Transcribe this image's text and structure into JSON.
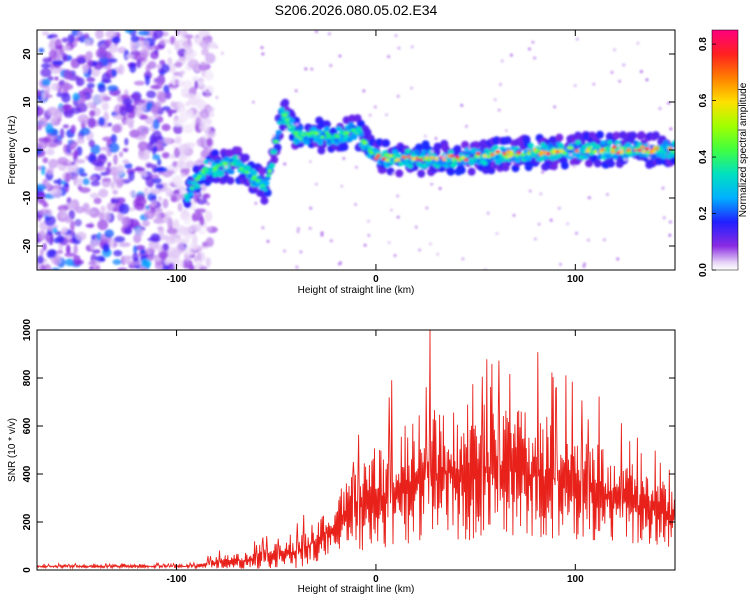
{
  "figure": {
    "title": "S206.2026.080.05.02.E34"
  },
  "chart_data": [
    {
      "type": "heatmap",
      "title": "S206.2026.080.05.02.E34",
      "xlabel": "Height of straight line (km)",
      "ylabel": "Frequency (Hz)",
      "xlim": [
        -170,
        150
      ],
      "ylim": [
        -25,
        25
      ],
      "xticks": [
        -100,
        0,
        100
      ],
      "yticks": [
        -20,
        -10,
        0,
        10,
        20
      ],
      "xtick_labels": [
        "-100",
        "0",
        "100"
      ],
      "ytick_labels": [
        "-20",
        "-10",
        "0",
        "10",
        "20"
      ],
      "colorbar": {
        "label": "Normalized spectral amplitude",
        "range": [
          0.0,
          0.85
        ],
        "ticks": [
          0.0,
          0.2,
          0.4,
          0.6,
          0.8
        ],
        "tick_labels": [
          "0.0",
          "0.2",
          "0.4",
          "0.6",
          "0.8"
        ],
        "colormap": "rainbow-purple-to-red"
      },
      "ridge": {
        "description_points": [
          {
            "x": -95,
            "y": -9
          },
          {
            "x": -85,
            "y": -4
          },
          {
            "x": -70,
            "y": -3
          },
          {
            "x": -55,
            "y": -8
          },
          {
            "x": -47,
            "y": 8
          },
          {
            "x": -40,
            "y": 3
          },
          {
            "x": -20,
            "y": 3
          },
          {
            "x": -10,
            "y": 4
          },
          {
            "x": 0,
            "y": -1.5
          },
          {
            "x": 30,
            "y": -2
          },
          {
            "x": 60,
            "y": -1
          },
          {
            "x": 100,
            "y": 0
          },
          {
            "x": 150,
            "y": 0
          }
        ],
        "peak_value": 0.82
      },
      "noise_region": {
        "x_range": [
          -170,
          -90
        ],
        "max_value": 0.25
      }
    },
    {
      "type": "line",
      "xlabel": "Height of straight line (km)",
      "ylabel": "SNR (10 * v/v)",
      "xlim": [
        -170,
        150
      ],
      "ylim": [
        0,
        1000
      ],
      "xticks": [
        -100,
        0,
        100
      ],
      "yticks": [
        0,
        200,
        400,
        600,
        800,
        1000
      ],
      "xtick_labels": [
        "-100",
        "0",
        "100"
      ],
      "ytick_labels": [
        "0",
        "200",
        "400",
        "600",
        "800",
        "1000"
      ],
      "series": [
        {
          "name": "SNR",
          "color": "#e8211b",
          "envelope": [
            {
              "x": -170,
              "mean": 15,
              "amp": 12
            },
            {
              "x": -90,
              "mean": 15,
              "amp": 15
            },
            {
              "x": -80,
              "mean": 30,
              "amp": 50
            },
            {
              "x": -60,
              "mean": 45,
              "amp": 80
            },
            {
              "x": -40,
              "mean": 70,
              "amp": 130
            },
            {
              "x": -30,
              "mean": 120,
              "amp": 180
            },
            {
              "x": -20,
              "mean": 180,
              "amp": 260
            },
            {
              "x": -5,
              "mean": 280,
              "amp": 400
            },
            {
              "x": 15,
              "mean": 350,
              "amp": 520
            },
            {
              "x": 30,
              "mean": 400,
              "amp": 600
            },
            {
              "x": 60,
              "mean": 420,
              "amp": 560
            },
            {
              "x": 90,
              "mean": 380,
              "amp": 500
            },
            {
              "x": 120,
              "mean": 300,
              "amp": 380
            },
            {
              "x": 150,
              "mean": 220,
              "amp": 250
            }
          ],
          "peak": {
            "x": 27,
            "y": 1000
          }
        }
      ]
    }
  ]
}
